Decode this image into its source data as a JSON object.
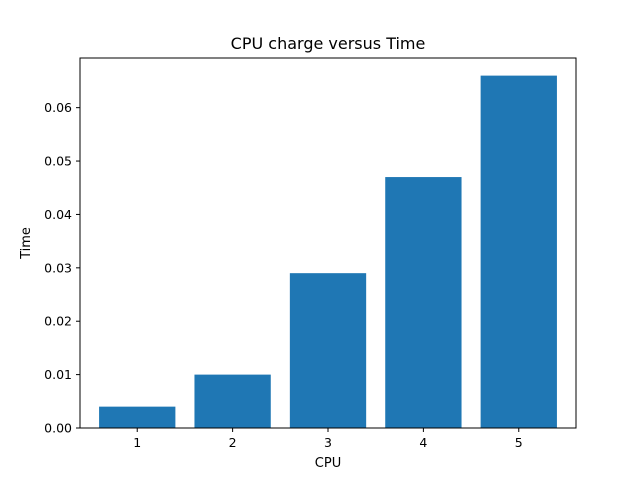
{
  "chart_data": {
    "type": "bar",
    "title": "CPU charge versus Time",
    "xlabel": "CPU",
    "ylabel": "Time",
    "categories": [
      "1",
      "2",
      "3",
      "4",
      "5"
    ],
    "values": [
      0.004,
      0.01,
      0.029,
      0.047,
      0.066
    ],
    "ylim": [
      0,
      0.0693
    ],
    "yticks": [
      0.0,
      0.01,
      0.02,
      0.03,
      0.04,
      0.05,
      0.06
    ],
    "ytick_labels": [
      "0.00",
      "0.01",
      "0.02",
      "0.03",
      "0.04",
      "0.05",
      "0.06"
    ],
    "bar_color": "#1f77b4",
    "grid": false,
    "legend": "none"
  }
}
